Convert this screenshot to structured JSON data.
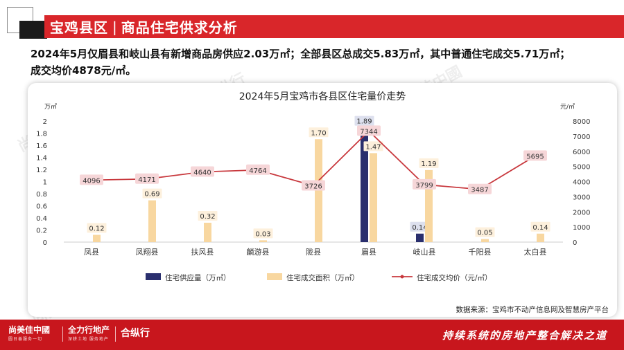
{
  "header": {
    "title": "宝鸡县区",
    "separator": "|",
    "subtitle": "商品住宅供求分析"
  },
  "summary": {
    "line1": "2024年5月仅眉县和岐山县有新增商品房供应2.03万㎡；全部县区总成交5.83万㎡，其中普通住宅成交5.71万㎡；",
    "line2": "成交均价4878元/㎡。"
  },
  "source": "数据来源：宝鸡市不动产信息网及智慧房产平台",
  "watermarks": [
    "尚美佳中國",
    "全力行地产",
    "合纵行"
  ],
  "footer": {
    "brand1": "尚美佳中國",
    "brand1_sub": "圆日善服务一切",
    "brand2": "全力行地产",
    "brand2_sub": "深耕土地 服务地产",
    "brand3": "合纵行",
    "brand3_sub": "",
    "slogan": "持续系统的房地产整合解决之道"
  },
  "colors": {
    "supply": "#2a2f6e",
    "deal_area": "#f8d7a0",
    "avg_price": "#c8383d",
    "header_red": "#d9262a",
    "footer_red": "#c8161d"
  },
  "chart_data": {
    "type": "bar",
    "title": "2024年5月宝鸡市各县区住宅量价走势",
    "categories": [
      "凤县",
      "凤翔县",
      "扶风县",
      "麟游县",
      "陇县",
      "眉县",
      "岐山县",
      "千阳县",
      "太白县"
    ],
    "ylabel_left": "万㎡",
    "ylabel_right": "元/㎡",
    "ylim_left": [
      0,
      2
    ],
    "yticks_left": [
      "0",
      "0.2",
      "0.4",
      "0.6",
      "0.8",
      "1",
      "1.2",
      "1.4",
      "1.6",
      "1.8",
      "2"
    ],
    "ylim_right": [
      0,
      8000
    ],
    "yticks_right": [
      "0",
      "1000",
      "2000",
      "3000",
      "4000",
      "5000",
      "6000",
      "7000",
      "8000"
    ],
    "series": [
      {
        "name": "住宅供应量（万㎡）",
        "type": "bar",
        "axis": "left",
        "values": [
          null,
          null,
          null,
          null,
          null,
          1.89,
          0.14,
          null,
          null
        ]
      },
      {
        "name": "住宅成交面积（万㎡）",
        "type": "bar",
        "axis": "left",
        "values": [
          0.12,
          0.69,
          0.32,
          0.03,
          1.7,
          1.47,
          1.19,
          0.05,
          0.14
        ]
      },
      {
        "name": "住宅成交均价（元/㎡）",
        "type": "line",
        "axis": "right",
        "values": [
          4096,
          4171,
          4640,
          4764,
          3726,
          7344,
          3799,
          3487,
          5695
        ]
      }
    ],
    "grid": false,
    "legend_position": "bottom"
  }
}
